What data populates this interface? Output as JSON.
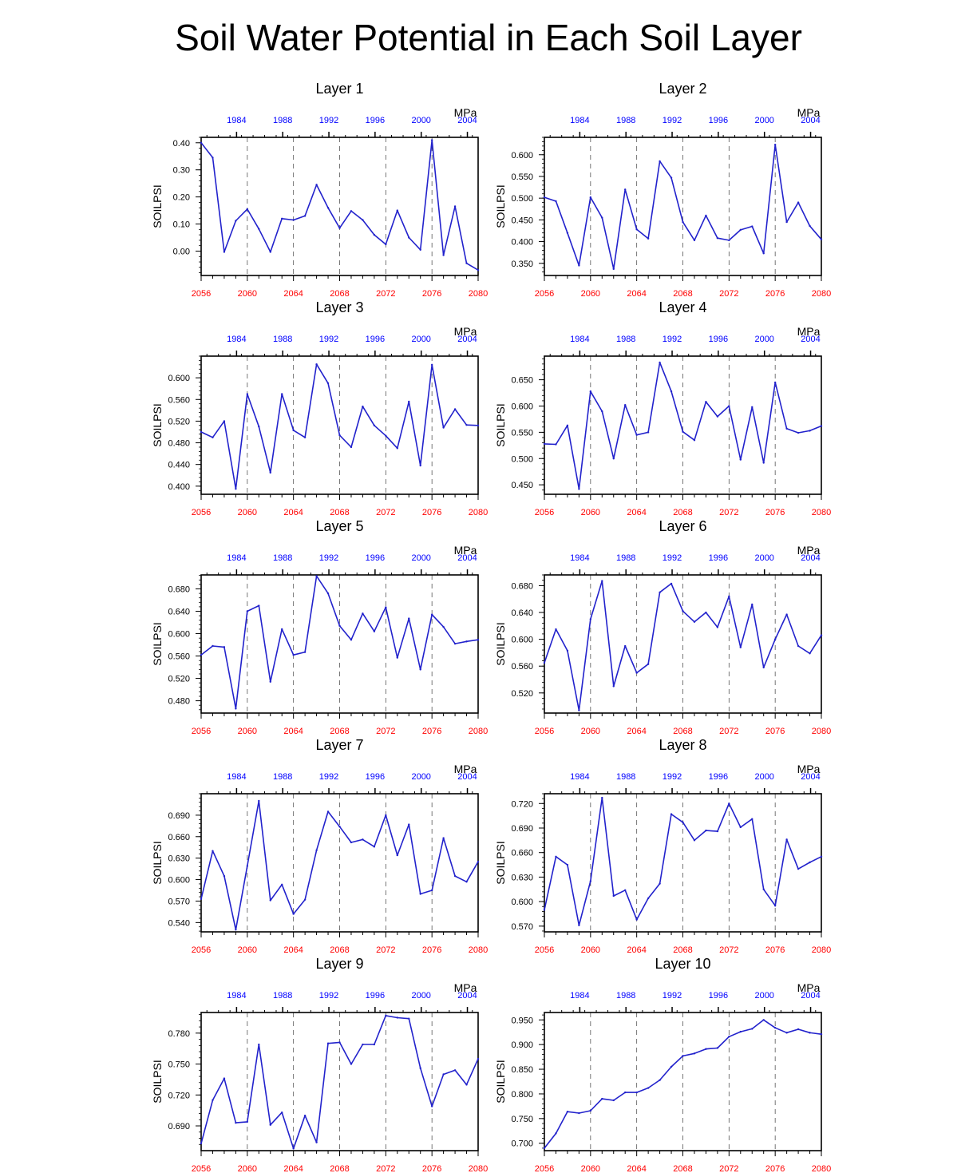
{
  "title": "Soil Water Potential in Each Soil Layer",
  "colors": {
    "line": "#2222cc",
    "bottom_ticks": "#ff0000",
    "top_ticks": "#0000ff",
    "axis": "#000000",
    "grid": "#555555"
  },
  "chart_data": [
    {
      "type": "line",
      "title": "Layer 1",
      "ylabel": "SOILPSI",
      "unit": "MPa",
      "x": [
        2056,
        2057,
        2058,
        2059,
        2060,
        2061,
        2062,
        2063,
        2064,
        2065,
        2066,
        2067,
        2068,
        2069,
        2070,
        2071,
        2072,
        2073,
        2074,
        2075,
        2076,
        2077,
        2078,
        2079,
        2080
      ],
      "x_top_ticks": [
        "1984",
        "1988",
        "1992",
        "1996",
        "2000",
        "2004"
      ],
      "x_bottom_ticks": [
        "2056",
        "2060",
        "2064",
        "2068",
        "2072",
        "2076",
        "2080"
      ],
      "ylim": [
        -0.09,
        0.42
      ],
      "y_ticks": [
        "0.00",
        "0.10",
        "0.20",
        "0.30",
        "0.40"
      ],
      "y_tick_values": [
        0.0,
        0.1,
        0.2,
        0.3,
        0.4
      ],
      "series": [
        {
          "values": [
            0.4,
            0.345,
            -0.003,
            0.112,
            0.155,
            0.082,
            -0.003,
            0.12,
            0.115,
            0.13,
            0.245,
            0.16,
            0.085,
            0.148,
            0.115,
            0.06,
            0.025,
            0.15,
            0.05,
            0.005,
            0.41,
            -0.015,
            0.165,
            -0.045,
            -0.07
          ]
        }
      ]
    },
    {
      "type": "line",
      "title": "Layer 2",
      "ylabel": "SOILPSI",
      "unit": "MPa",
      "x": [
        2056,
        2057,
        2058,
        2059,
        2060,
        2061,
        2062,
        2063,
        2064,
        2065,
        2066,
        2067,
        2068,
        2069,
        2070,
        2071,
        2072,
        2073,
        2074,
        2075,
        2076,
        2077,
        2078,
        2079,
        2080
      ],
      "x_top_ticks": [
        "1984",
        "1988",
        "1992",
        "1996",
        "2000",
        "2004"
      ],
      "x_bottom_ticks": [
        "2056",
        "2060",
        "2064",
        "2068",
        "2072",
        "2076",
        "2080"
      ],
      "ylim": [
        0.322,
        0.64
      ],
      "y_ticks": [
        "0.350",
        "0.400",
        "0.450",
        "0.500",
        "0.550",
        "0.600"
      ],
      "y_tick_values": [
        0.35,
        0.4,
        0.45,
        0.5,
        0.55,
        0.6
      ],
      "series": [
        {
          "values": [
            0.502,
            0.493,
            0.42,
            0.345,
            0.502,
            0.455,
            0.337,
            0.52,
            0.428,
            0.407,
            0.585,
            0.547,
            0.445,
            0.403,
            0.46,
            0.408,
            0.403,
            0.427,
            0.435,
            0.373,
            0.623,
            0.445,
            0.49,
            0.436,
            0.405
          ]
        }
      ]
    },
    {
      "type": "line",
      "title": "Layer 3",
      "ylabel": "SOILPSI",
      "unit": "MPa",
      "x": [
        2056,
        2057,
        2058,
        2059,
        2060,
        2061,
        2062,
        2063,
        2064,
        2065,
        2066,
        2067,
        2068,
        2069,
        2070,
        2071,
        2072,
        2073,
        2074,
        2075,
        2076,
        2077,
        2078,
        2079,
        2080
      ],
      "x_top_ticks": [
        "1984",
        "1988",
        "1992",
        "1996",
        "2000",
        "2004"
      ],
      "x_bottom_ticks": [
        "2056",
        "2060",
        "2064",
        "2068",
        "2072",
        "2076",
        "2080"
      ],
      "ylim": [
        0.385,
        0.64
      ],
      "y_ticks": [
        "0.400",
        "0.440",
        "0.480",
        "0.520",
        "0.560",
        "0.600"
      ],
      "y_tick_values": [
        0.4,
        0.44,
        0.48,
        0.52,
        0.56,
        0.6
      ],
      "series": [
        {
          "values": [
            0.5,
            0.49,
            0.52,
            0.395,
            0.57,
            0.51,
            0.425,
            0.57,
            0.503,
            0.49,
            0.625,
            0.59,
            0.494,
            0.472,
            0.547,
            0.512,
            0.493,
            0.47,
            0.556,
            0.438,
            0.624,
            0.508,
            0.542,
            0.513,
            0.512
          ]
        }
      ]
    },
    {
      "type": "line",
      "title": "Layer 4",
      "ylabel": "SOILPSI",
      "unit": "MPa",
      "x": [
        2056,
        2057,
        2058,
        2059,
        2060,
        2061,
        2062,
        2063,
        2064,
        2065,
        2066,
        2067,
        2068,
        2069,
        2070,
        2071,
        2072,
        2073,
        2074,
        2075,
        2076,
        2077,
        2078,
        2079,
        2080
      ],
      "x_top_ticks": [
        "1984",
        "1988",
        "1992",
        "1996",
        "2000",
        "2004"
      ],
      "x_bottom_ticks": [
        "2056",
        "2060",
        "2064",
        "2068",
        "2072",
        "2076",
        "2080"
      ],
      "ylim": [
        0.432,
        0.695
      ],
      "y_ticks": [
        "0.450",
        "0.500",
        "0.550",
        "0.600",
        "0.650"
      ],
      "y_tick_values": [
        0.45,
        0.5,
        0.55,
        0.6,
        0.65
      ],
      "series": [
        {
          "values": [
            0.528,
            0.527,
            0.563,
            0.442,
            0.628,
            0.59,
            0.5,
            0.602,
            0.545,
            0.55,
            0.683,
            0.628,
            0.551,
            0.535,
            0.608,
            0.58,
            0.6,
            0.498,
            0.598,
            0.492,
            0.645,
            0.557,
            0.549,
            0.553,
            0.562
          ]
        }
      ]
    },
    {
      "type": "line",
      "title": "Layer 5",
      "ylabel": "SOILPSI",
      "unit": "MPa",
      "x": [
        2056,
        2057,
        2058,
        2059,
        2060,
        2061,
        2062,
        2063,
        2064,
        2065,
        2066,
        2067,
        2068,
        2069,
        2070,
        2071,
        2072,
        2073,
        2074,
        2075,
        2076,
        2077,
        2078,
        2079,
        2080
      ],
      "x_top_ticks": [
        "1984",
        "1988",
        "1992",
        "1996",
        "2000",
        "2004"
      ],
      "x_bottom_ticks": [
        "2056",
        "2060",
        "2064",
        "2068",
        "2072",
        "2076",
        "2080"
      ],
      "ylim": [
        0.458,
        0.705
      ],
      "y_ticks": [
        "0.480",
        "0.520",
        "0.560",
        "0.600",
        "0.640",
        "0.680"
      ],
      "y_tick_values": [
        0.48,
        0.52,
        0.56,
        0.6,
        0.64,
        0.68
      ],
      "series": [
        {
          "values": [
            0.562,
            0.578,
            0.576,
            0.466,
            0.64,
            0.65,
            0.514,
            0.608,
            0.562,
            0.567,
            0.703,
            0.672,
            0.614,
            0.589,
            0.636,
            0.604,
            0.647,
            0.557,
            0.627,
            0.536,
            0.634,
            0.612,
            0.582,
            0.586,
            0.589
          ]
        }
      ]
    },
    {
      "type": "line",
      "title": "Layer 6",
      "ylabel": "SOILPSI",
      "unit": "MPa",
      "x": [
        2056,
        2057,
        2058,
        2059,
        2060,
        2061,
        2062,
        2063,
        2064,
        2065,
        2066,
        2067,
        2068,
        2069,
        2070,
        2071,
        2072,
        2073,
        2074,
        2075,
        2076,
        2077,
        2078,
        2079,
        2080
      ],
      "x_top_ticks": [
        "1984",
        "1988",
        "1992",
        "1996",
        "2000",
        "2004"
      ],
      "x_bottom_ticks": [
        "2056",
        "2060",
        "2064",
        "2068",
        "2072",
        "2076",
        "2080"
      ],
      "ylim": [
        0.49,
        0.696
      ],
      "y_ticks": [
        "0.520",
        "0.560",
        "0.600",
        "0.640",
        "0.680"
      ],
      "y_tick_values": [
        0.52,
        0.56,
        0.6,
        0.64,
        0.68
      ],
      "series": [
        {
          "values": [
            0.565,
            0.615,
            0.583,
            0.494,
            0.63,
            0.687,
            0.53,
            0.59,
            0.55,
            0.563,
            0.67,
            0.683,
            0.642,
            0.626,
            0.64,
            0.618,
            0.664,
            0.588,
            0.652,
            0.558,
            0.6,
            0.637,
            0.59,
            0.579,
            0.606
          ]
        }
      ]
    },
    {
      "type": "line",
      "title": "Layer 7",
      "ylabel": "SOILPSI",
      "unit": "MPa",
      "x": [
        2056,
        2057,
        2058,
        2059,
        2060,
        2061,
        2062,
        2063,
        2064,
        2065,
        2066,
        2067,
        2068,
        2069,
        2070,
        2071,
        2072,
        2073,
        2074,
        2075,
        2076,
        2077,
        2078,
        2079,
        2080
      ],
      "x_top_ticks": [
        "1984",
        "1988",
        "1992",
        "1996",
        "2000",
        "2004"
      ],
      "x_bottom_ticks": [
        "2056",
        "2060",
        "2064",
        "2068",
        "2072",
        "2076",
        "2080"
      ],
      "ylim": [
        0.527,
        0.72
      ],
      "y_ticks": [
        "0.540",
        "0.570",
        "0.600",
        "0.630",
        "0.660",
        "0.690"
      ],
      "y_tick_values": [
        0.54,
        0.57,
        0.6,
        0.63,
        0.66,
        0.69
      ],
      "series": [
        {
          "values": [
            0.573,
            0.64,
            0.605,
            0.53,
            0.619,
            0.71,
            0.571,
            0.593,
            0.552,
            0.572,
            0.641,
            0.695,
            0.674,
            0.652,
            0.656,
            0.646,
            0.69,
            0.634,
            0.677,
            0.58,
            0.585,
            0.658,
            0.605,
            0.597,
            0.625
          ]
        }
      ]
    },
    {
      "type": "line",
      "title": "Layer 8",
      "ylabel": "SOILPSI",
      "unit": "MPa",
      "x": [
        2056,
        2057,
        2058,
        2059,
        2060,
        2061,
        2062,
        2063,
        2064,
        2065,
        2066,
        2067,
        2068,
        2069,
        2070,
        2071,
        2072,
        2073,
        2074,
        2075,
        2076,
        2077,
        2078,
        2079,
        2080
      ],
      "x_top_ticks": [
        "1984",
        "1988",
        "1992",
        "1996",
        "2000",
        "2004"
      ],
      "x_bottom_ticks": [
        "2056",
        "2060",
        "2064",
        "2068",
        "2072",
        "2076",
        "2080"
      ],
      "ylim": [
        0.563,
        0.732
      ],
      "y_ticks": [
        "0.570",
        "0.600",
        "0.630",
        "0.660",
        "0.690",
        "0.720"
      ],
      "y_tick_values": [
        0.57,
        0.6,
        0.63,
        0.66,
        0.69,
        0.72
      ],
      "series": [
        {
          "values": [
            0.59,
            0.655,
            0.645,
            0.571,
            0.625,
            0.727,
            0.607,
            0.614,
            0.578,
            0.604,
            0.622,
            0.707,
            0.697,
            0.675,
            0.687,
            0.686,
            0.72,
            0.691,
            0.701,
            0.615,
            0.595,
            0.676,
            0.64,
            0.648,
            0.655
          ]
        }
      ]
    },
    {
      "type": "line",
      "title": "Layer 9",
      "ylabel": "SOILPSI",
      "unit": "MPa",
      "x": [
        2056,
        2057,
        2058,
        2059,
        2060,
        2061,
        2062,
        2063,
        2064,
        2065,
        2066,
        2067,
        2068,
        2069,
        2070,
        2071,
        2072,
        2073,
        2074,
        2075,
        2076,
        2077,
        2078,
        2079,
        2080
      ],
      "x_top_ticks": [
        "1984",
        "1988",
        "1992",
        "1996",
        "2000",
        "2004"
      ],
      "x_bottom_ticks": [
        "2056",
        "2060",
        "2064",
        "2068",
        "2072",
        "2076",
        "2080"
      ],
      "ylim": [
        0.666,
        0.8
      ],
      "y_ticks": [
        "0.690",
        "0.720",
        "0.750",
        "0.780"
      ],
      "y_tick_values": [
        0.69,
        0.72,
        0.75,
        0.78
      ],
      "series": [
        {
          "values": [
            0.673,
            0.715,
            0.736,
            0.693,
            0.694,
            0.769,
            0.691,
            0.703,
            0.668,
            0.7,
            0.674,
            0.77,
            0.771,
            0.75,
            0.769,
            0.769,
            0.797,
            0.795,
            0.794,
            0.746,
            0.709,
            0.74,
            0.744,
            0.73,
            0.755
          ]
        }
      ]
    },
    {
      "type": "line",
      "title": "Layer 10",
      "ylabel": "SOILPSI",
      "unit": "MPa",
      "x": [
        2056,
        2057,
        2058,
        2059,
        2060,
        2061,
        2062,
        2063,
        2064,
        2065,
        2066,
        2067,
        2068,
        2069,
        2070,
        2071,
        2072,
        2073,
        2074,
        2075,
        2076,
        2077,
        2078,
        2079,
        2080
      ],
      "x_top_ticks": [
        "1984",
        "1988",
        "1992",
        "1996",
        "2000",
        "2004"
      ],
      "x_bottom_ticks": [
        "2056",
        "2060",
        "2064",
        "2068",
        "2072",
        "2076",
        "2080"
      ],
      "ylim": [
        0.685,
        0.965
      ],
      "y_ticks": [
        "0.700",
        "0.750",
        "0.800",
        "0.850",
        "0.900",
        "0.950"
      ],
      "y_tick_values": [
        0.7,
        0.75,
        0.8,
        0.85,
        0.9,
        0.95
      ],
      "series": [
        {
          "values": [
            0.69,
            0.72,
            0.764,
            0.761,
            0.766,
            0.79,
            0.787,
            0.803,
            0.803,
            0.812,
            0.828,
            0.855,
            0.877,
            0.882,
            0.891,
            0.893,
            0.916,
            0.926,
            0.932,
            0.95,
            0.934,
            0.924,
            0.931,
            0.924,
            0.921
          ]
        }
      ]
    }
  ]
}
